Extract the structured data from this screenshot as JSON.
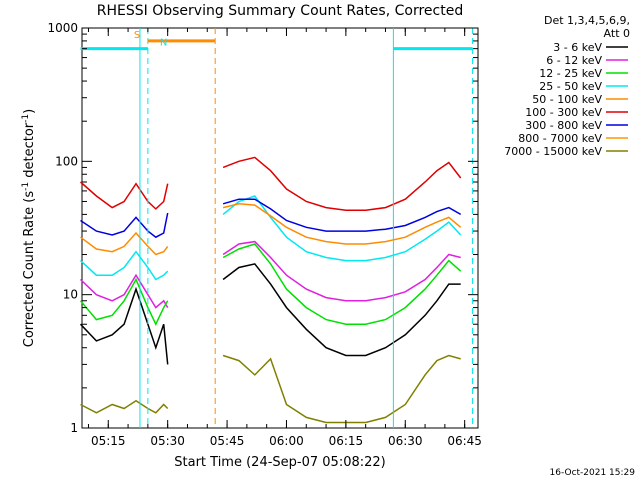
{
  "chart_data": {
    "type": "line",
    "title": "RHESSI Observing Summary Count Rates, Corrected",
    "xlabel": "Start Time (24-Sep-07 05:08:22)",
    "ylabel_main": "Corrected Count Rate (s",
    "ylabel_sup1": "-1",
    "ylabel_mid": " detector",
    "ylabel_sup2": "-1",
    "ylabel_end": ")",
    "y_scale": "log",
    "ylim": [
      1,
      1000
    ],
    "xlim": [
      "05:08:22",
      "06:48:22"
    ],
    "x_ticks": [
      "05:15",
      "05:30",
      "05:45",
      "06:00",
      "06:15",
      "06:30",
      "06:45"
    ],
    "y_ticks": [
      "1",
      "10",
      "100",
      "1000"
    ],
    "grid": false,
    "legend_header": [
      "Det 1,3,4,5,6,9,",
      "Att 0"
    ],
    "legend_position": "right",
    "series": [
      {
        "name": "3 - 6 keV",
        "color": "#000000",
        "x": [
          "05:08",
          "05:12",
          "05:16",
          "05:19",
          "05:22",
          "05:25",
          "05:27",
          "05:29",
          "05:30",
          "05:41",
          "05:44",
          "05:48",
          "05:52",
          "05:56",
          "06:00",
          "06:05",
          "06:10",
          "06:15",
          "06:20",
          "06:25",
          "06:30",
          "06:35",
          "06:38",
          "06:41",
          "06:44"
        ],
        "values": [
          6,
          4.5,
          5,
          6,
          11,
          6,
          4,
          6,
          3,
          null,
          13,
          16,
          17,
          12,
          8,
          5.5,
          4,
          3.5,
          3.5,
          4,
          5,
          7,
          9,
          12,
          12
        ]
      },
      {
        "name": "6 - 12 keV",
        "color": "#e020e0",
        "x": [
          "05:08",
          "05:12",
          "05:16",
          "05:19",
          "05:22",
          "05:25",
          "05:27",
          "05:29",
          "05:30",
          "05:41",
          "05:44",
          "05:48",
          "05:52",
          "05:56",
          "06:00",
          "06:05",
          "06:10",
          "06:15",
          "06:20",
          "06:25",
          "06:30",
          "06:35",
          "06:38",
          "06:41",
          "06:44"
        ],
        "values": [
          13,
          10,
          9,
          10,
          14,
          10,
          8,
          9,
          8,
          null,
          20,
          24,
          25,
          19,
          14,
          11,
          9.5,
          9,
          9,
          9.5,
          10.5,
          13,
          16,
          20,
          19
        ]
      },
      {
        "name": "12 - 25 keV",
        "color": "#00e000",
        "x": [
          "05:08",
          "05:12",
          "05:16",
          "05:19",
          "05:22",
          "05:25",
          "05:27",
          "05:29",
          "05:30",
          "05:41",
          "05:44",
          "05:48",
          "05:52",
          "05:56",
          "06:00",
          "06:05",
          "06:10",
          "06:15",
          "06:20",
          "06:25",
          "06:30",
          "06:35",
          "06:38",
          "06:41",
          "06:44"
        ],
        "values": [
          9,
          6.5,
          7,
          9,
          13,
          8,
          6,
          8,
          9,
          null,
          19,
          22,
          24,
          17,
          11,
          8,
          6.5,
          6,
          6,
          6.5,
          8,
          11,
          14,
          18,
          15
        ]
      },
      {
        "name": "25 - 50 keV",
        "color": "#00e8f0",
        "x": [
          "05:08",
          "05:12",
          "05:16",
          "05:19",
          "05:22",
          "05:25",
          "05:27",
          "05:29",
          "05:30",
          "05:41",
          "05:44",
          "05:48",
          "05:52",
          "05:56",
          "06:00",
          "06:05",
          "06:10",
          "06:15",
          "06:20",
          "06:25",
          "06:30",
          "06:35",
          "06:38",
          "06:41",
          "06:44"
        ],
        "values": [
          18,
          14,
          14,
          16,
          21,
          16,
          13,
          14,
          15,
          null,
          40,
          50,
          55,
          38,
          27,
          21,
          19,
          18,
          18,
          19,
          21,
          26,
          30,
          35,
          28
        ]
      },
      {
        "name": "50 - 100 keV",
        "color": "#ff8c00",
        "x": [
          "05:08",
          "05:12",
          "05:16",
          "05:19",
          "05:22",
          "05:25",
          "05:27",
          "05:29",
          "05:30",
          "05:41",
          "05:44",
          "05:48",
          "05:52",
          "05:56",
          "06:00",
          "06:05",
          "06:10",
          "06:15",
          "06:20",
          "06:25",
          "06:30",
          "06:35",
          "06:38",
          "06:41",
          "06:44"
        ],
        "values": [
          27,
          22,
          21,
          23,
          29,
          23,
          20,
          21,
          23,
          null,
          45,
          48,
          47,
          39,
          32,
          27,
          25,
          24,
          24,
          25,
          27,
          32,
          35,
          38,
          32
        ]
      },
      {
        "name": "100 - 300 keV",
        "color": "#e00000",
        "x": [
          "05:08",
          "05:12",
          "05:16",
          "05:19",
          "05:22",
          "05:25",
          "05:27",
          "05:29",
          "05:30",
          "05:41",
          "05:44",
          "05:48",
          "05:52",
          "05:56",
          "06:00",
          "06:05",
          "06:10",
          "06:15",
          "06:20",
          "06:25",
          "06:30",
          "06:35",
          "06:38",
          "06:41",
          "06:44"
        ],
        "values": [
          70,
          55,
          45,
          50,
          68,
          50,
          44,
          50,
          68,
          null,
          90,
          100,
          107,
          85,
          62,
          50,
          45,
          43,
          43,
          45,
          52,
          70,
          85,
          98,
          75
        ]
      },
      {
        "name": "300 - 800 keV",
        "color": "#0000e0",
        "x": [
          "05:08",
          "05:12",
          "05:16",
          "05:19",
          "05:22",
          "05:25",
          "05:27",
          "05:29",
          "05:30",
          "05:41",
          "05:44",
          "05:48",
          "05:52",
          "05:56",
          "06:00",
          "06:05",
          "06:10",
          "06:15",
          "06:20",
          "06:25",
          "06:30",
          "06:35",
          "06:38",
          "06:41",
          "06:44"
        ],
        "values": [
          36,
          30,
          28,
          30,
          38,
          30,
          27,
          29,
          41,
          null,
          48,
          52,
          52,
          44,
          36,
          32,
          30,
          30,
          30,
          31,
          33,
          38,
          42,
          45,
          40
        ]
      },
      {
        "name": "800 - 7000 keV",
        "color": "#ff9900",
        "x": [
          "05:08",
          "05:12",
          "05:16",
          "05:19",
          "05:22",
          "05:25",
          "05:27",
          "05:29",
          "05:30",
          "05:41",
          "05:44",
          "05:48",
          "05:52",
          "05:56",
          "06:00",
          "06:05",
          "06:10",
          "06:15",
          "06:20",
          "06:25",
          "06:30",
          "06:35",
          "06:38",
          "06:41",
          "06:44"
        ],
        "values": [
          null,
          null,
          null,
          null,
          null,
          null,
          null,
          null,
          null,
          null,
          null,
          null,
          null,
          null,
          null,
          null,
          null,
          null,
          null,
          null,
          null,
          null,
          null,
          null,
          null
        ]
      },
      {
        "name": "7000 - 15000 keV",
        "color": "#808000",
        "x": [
          "05:08",
          "05:12",
          "05:16",
          "05:19",
          "05:22",
          "05:25",
          "05:27",
          "05:29",
          "05:30",
          "05:41",
          "05:44",
          "05:48",
          "05:52",
          "05:56",
          "06:00",
          "06:05",
          "06:10",
          "06:15",
          "06:20",
          "06:25",
          "06:30",
          "06:35",
          "06:38",
          "06:41",
          "06:44"
        ],
        "values": [
          1.5,
          1.3,
          1.5,
          1.4,
          1.6,
          1.4,
          1.3,
          1.5,
          1.4,
          null,
          3.5,
          3.2,
          2.5,
          3.3,
          1.5,
          1.2,
          1.1,
          1.1,
          1.1,
          1.2,
          1.5,
          2.5,
          3.2,
          3.5,
          3.3
        ]
      }
    ],
    "flags": [
      {
        "name": "S",
        "color": "#ff8c00",
        "start": "05:25",
        "end": "05:42",
        "level": 800
      },
      {
        "name": "N",
        "color": "#00e8f0",
        "start": "05:26",
        "end": "05:26",
        "level": 700
      },
      {
        "name": "",
        "color": "#00e8f0",
        "start": "05:08",
        "end": "05:25",
        "level": 700
      },
      {
        "name": "",
        "color": "#00e8f0",
        "start": "06:27",
        "end": "06:47",
        "level": 700
      }
    ],
    "vlines": [
      {
        "at": "05:23",
        "color": "#00e8f0",
        "style": "solid"
      },
      {
        "at": "05:25",
        "color": "#00e8f0",
        "style": "dashed"
      },
      {
        "at": "05:42",
        "color": "#ff8c00",
        "style": "dashed"
      },
      {
        "at": "06:27",
        "color": "#00e8f0",
        "style": "solid"
      },
      {
        "at": "06:47",
        "color": "#00e8f0",
        "style": "dashed"
      }
    ],
    "footer_stamp": "16-Oct-2021 15:29"
  }
}
